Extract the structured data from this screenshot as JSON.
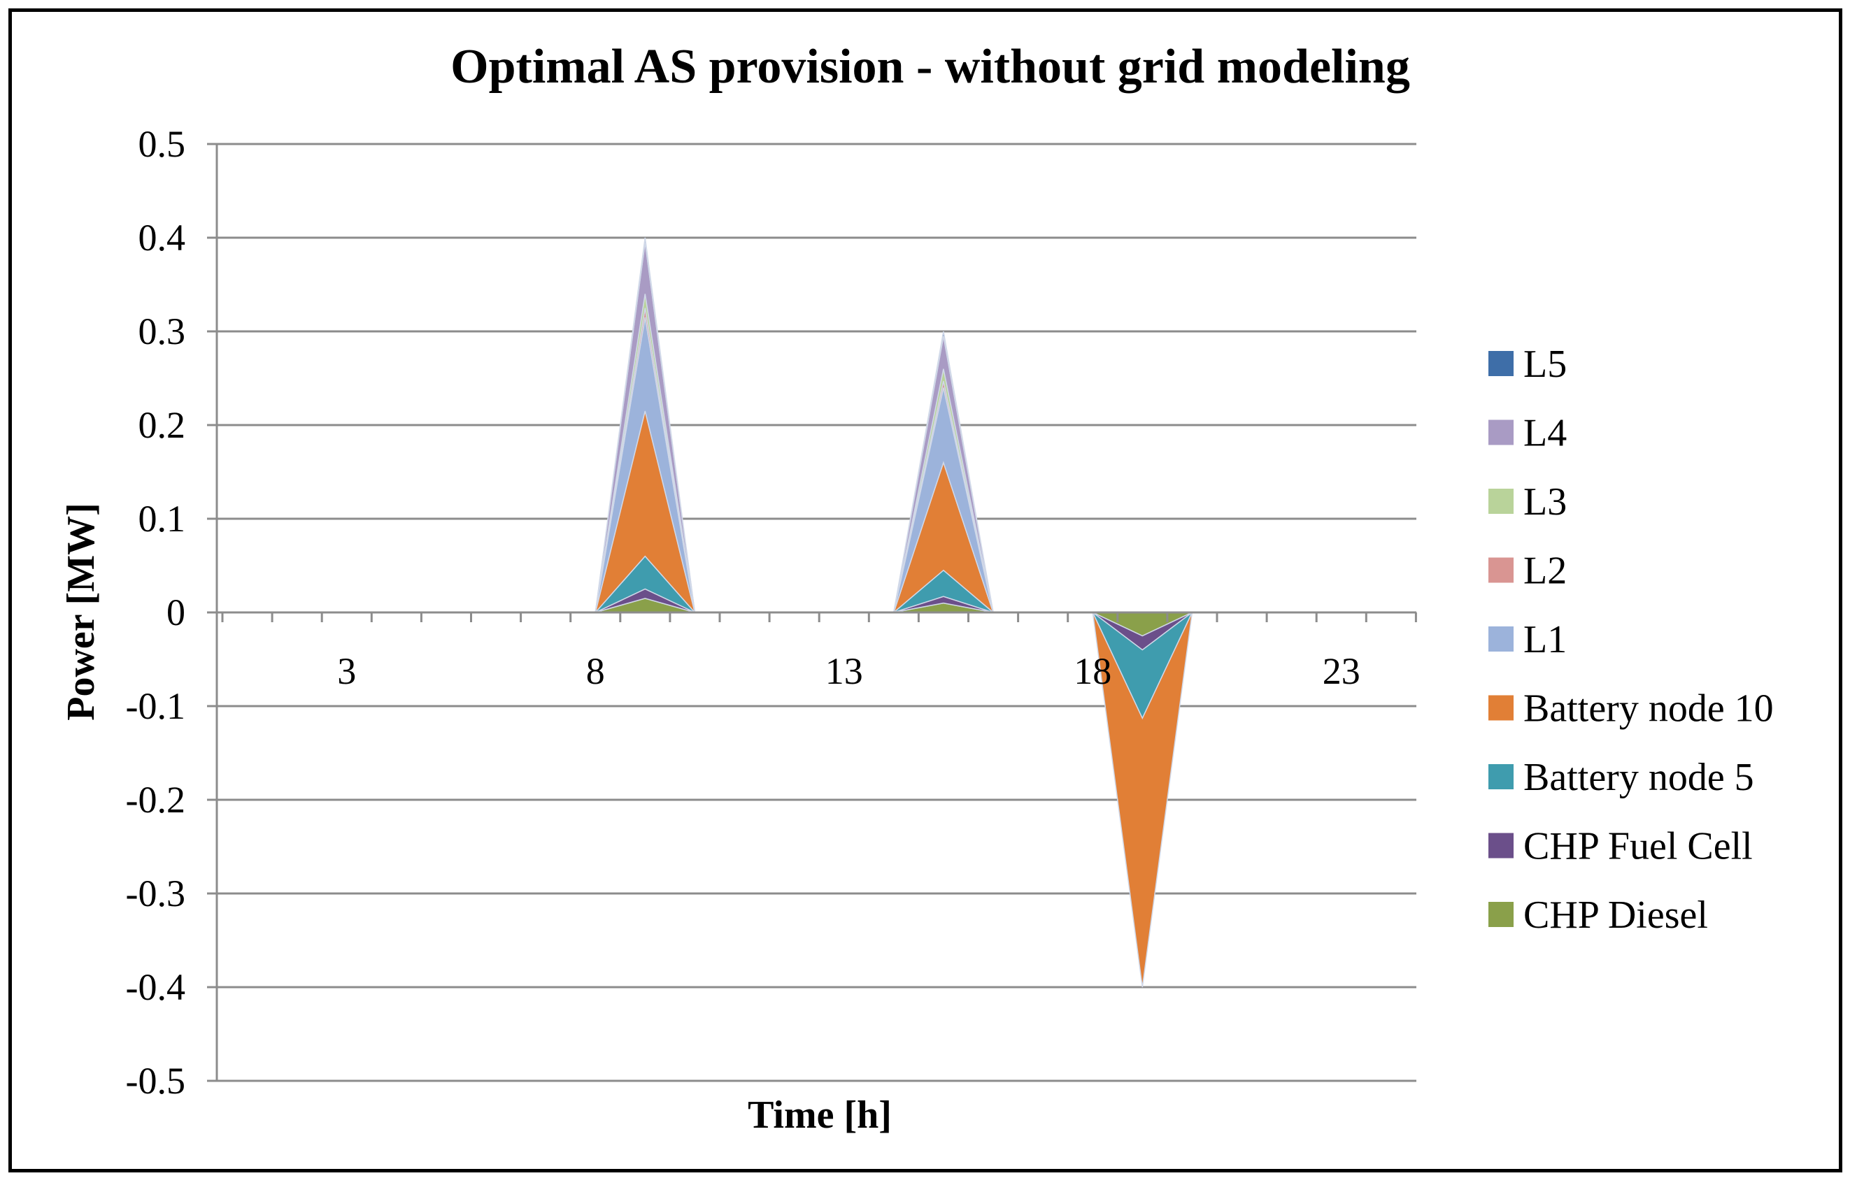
{
  "chart_data": {
    "type": "area",
    "stacked": true,
    "title": "Optimal AS provision - without grid modeling",
    "xlabel": "Time [h]",
    "ylabel": "Power [MW]",
    "ylim": [
      -0.5,
      0.5
    ],
    "yticks": [
      "0.5",
      "0.4",
      "0.3",
      "0.2",
      "0.1",
      "0",
      "-0.1",
      "-0.2",
      "-0.3",
      "-0.4",
      "-0.5"
    ],
    "ytick_values": [
      0.5,
      0.4,
      0.3,
      0.2,
      0.1,
      0,
      -0.1,
      -0.2,
      -0.3,
      -0.4,
      -0.5
    ],
    "xticks": [
      "3",
      "8",
      "13",
      "18",
      "23"
    ],
    "xtick_values": [
      3,
      8,
      13,
      18,
      23
    ],
    "x": [
      1,
      2,
      3,
      4,
      5,
      6,
      7,
      8,
      9,
      10,
      11,
      12,
      13,
      14,
      15,
      16,
      17,
      18,
      19,
      20,
      21,
      22,
      23,
      24
    ],
    "legend_position": "right",
    "grid": true,
    "series": [
      {
        "name": "CHP Diesel",
        "color": "#8aa04a",
        "values": [
          0,
          0,
          0,
          0,
          0,
          0,
          0,
          0,
          0.015,
          0,
          0,
          0,
          0,
          0,
          0.01,
          0,
          0,
          0,
          -0.025,
          0,
          0,
          0,
          0,
          0
        ]
      },
      {
        "name": "CHP Fuel Cell",
        "color": "#6b4f8a",
        "values": [
          0,
          0,
          0,
          0,
          0,
          0,
          0,
          0,
          0.01,
          0,
          0,
          0,
          0,
          0,
          0.007,
          0,
          0,
          0,
          -0.015,
          0,
          0,
          0,
          0,
          0
        ]
      },
      {
        "name": "Battery node 5",
        "color": "#3f9cae",
        "values": [
          0,
          0,
          0,
          0,
          0,
          0,
          0,
          0,
          0.035,
          0,
          0,
          0,
          0,
          0,
          0.028,
          0,
          0,
          0,
          -0.073,
          0,
          0,
          0,
          0,
          0
        ]
      },
      {
        "name": "Battery node 10",
        "color": "#e17f36",
        "values": [
          0,
          0,
          0,
          0,
          0,
          0,
          0,
          0,
          0.155,
          0,
          0,
          0,
          0,
          0,
          0.115,
          0,
          0,
          0,
          -0.287,
          0,
          0,
          0,
          0,
          0
        ]
      },
      {
        "name": "L1",
        "color": "#9cb3db",
        "values": [
          0,
          0,
          0,
          0,
          0,
          0,
          0,
          0,
          0.1,
          0,
          0,
          0,
          0,
          0,
          0.08,
          0,
          0,
          0,
          0,
          0,
          0,
          0,
          0,
          0
        ]
      },
      {
        "name": "L2",
        "color": "#d99592",
        "values": [
          0,
          0,
          0,
          0,
          0,
          0,
          0,
          0,
          0.01,
          0,
          0,
          0,
          0,
          0,
          0.007,
          0,
          0,
          0,
          0,
          0,
          0,
          0,
          0,
          0
        ]
      },
      {
        "name": "L3",
        "color": "#b9d39a",
        "values": [
          0,
          0,
          0,
          0,
          0,
          0,
          0,
          0,
          0.015,
          0,
          0,
          0,
          0,
          0,
          0.013,
          0,
          0,
          0,
          0,
          0,
          0,
          0,
          0,
          0
        ]
      },
      {
        "name": "L4",
        "color": "#a99bc4",
        "values": [
          0,
          0,
          0,
          0,
          0,
          0,
          0,
          0,
          0.055,
          0,
          0,
          0,
          0,
          0,
          0.035,
          0,
          0,
          0,
          0,
          0,
          0,
          0,
          0,
          0
        ]
      },
      {
        "name": "L5",
        "color": "#3e6ea8",
        "values": [
          0,
          0,
          0,
          0,
          0,
          0,
          0,
          0,
          0.005,
          0,
          0,
          0,
          0,
          0,
          0.005,
          0,
          0,
          0,
          0,
          0,
          0,
          0,
          0,
          0
        ]
      }
    ]
  }
}
